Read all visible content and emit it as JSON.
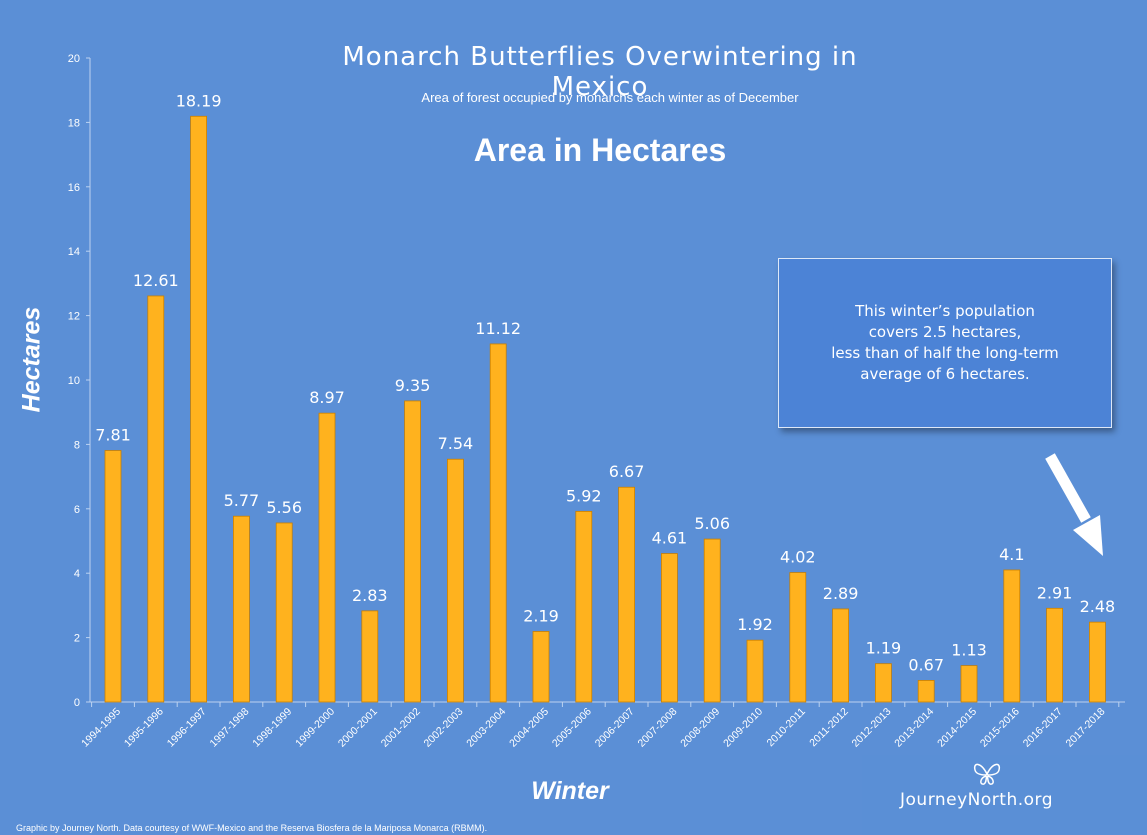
{
  "title": "Monarch Butterflies Overwintering in Mexico",
  "subtitle": "Area of forest occupied by monarchs each winter as of December",
  "headline": "Area in Hectares",
  "callout": {
    "line1": "This winter’s population",
    "line2": "covers 2.5 hectares,",
    "line3": "less than of half the long-term",
    "line4": "average of 6 hectares."
  },
  "credit": "Graphic by Journey North. Data courtesy of WWF-Mexico and the Reserva Biosfera de la Mariposa Monarca (RBMM).",
  "logo": {
    "text": "JourneyNorth.org",
    "icon": "butterfly-icon"
  },
  "colors": {
    "background": "#5b8fd6",
    "bar": "#ffb21e",
    "bar_stroke": "#c97f00",
    "text": "#ffffff",
    "arrow": "#ffffff"
  },
  "chart_data": {
    "type": "bar",
    "title": "Monarch Butterflies Overwintering in Mexico",
    "subtitle": "Area of forest occupied by monarchs each winter as of December",
    "xlabel": "Winter",
    "ylabel": "Hectares",
    "ylim": [
      0,
      20
    ],
    "yticks": [
      0,
      2,
      4,
      6,
      8,
      10,
      12,
      14,
      16,
      18,
      20
    ],
    "grid": false,
    "categories": [
      "1994-1995",
      "1995-1996",
      "1996-1997",
      "1997-1998",
      "1998-1999",
      "1999-2000",
      "2000-2001",
      "2001-2002",
      "2002-2003",
      "2003-2004",
      "2004-2005",
      "2005-2006",
      "2006-2007",
      "2007-2008",
      "2008-2009",
      "2009-2010",
      "2010-2011",
      "2011-2012",
      "2012-2013",
      "2013-2014",
      "2014-2015",
      "2015-2016",
      "2016-2017",
      "2017-2018"
    ],
    "values": [
      7.81,
      12.61,
      18.19,
      5.77,
      5.56,
      8.97,
      2.83,
      9.35,
      7.54,
      11.12,
      2.19,
      5.92,
      6.67,
      4.61,
      5.06,
      1.92,
      4.02,
      2.89,
      1.19,
      0.67,
      1.13,
      4.1,
      2.91,
      2.48
    ],
    "data_labels": [
      "7.81",
      "12.61",
      "18.19",
      "5.77",
      "5.56",
      "8.97",
      "2.83",
      "9.35",
      "7.54",
      "11.12",
      "2.19",
      "5.92",
      "6.67",
      "4.61",
      "5.06",
      "1.92",
      "4.02",
      "2.89",
      "1.19",
      "0.67",
      "1.13",
      "4.1",
      "2.91",
      "2.48"
    ]
  }
}
